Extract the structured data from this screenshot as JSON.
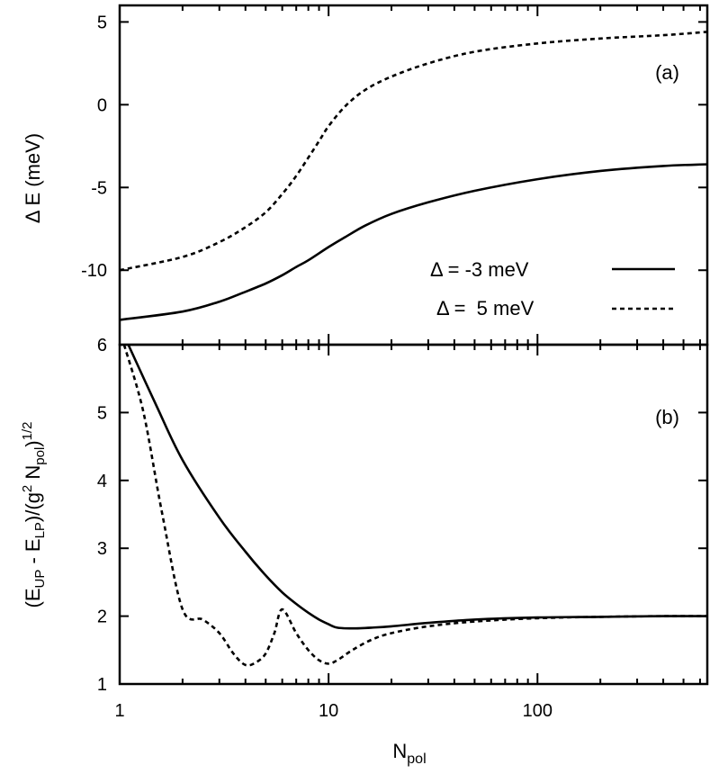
{
  "chart_data": {
    "type": "line",
    "xscale": "log",
    "xlim": [
      1,
      650
    ],
    "x_ticks": [
      1,
      10,
      100
    ],
    "x_tick_labels": [
      "1",
      "10",
      "100"
    ],
    "xlabel_main": "N",
    "xlabel_sub": "pol",
    "legend": [
      {
        "prefix": "Δ = ",
        "value": "-3 meV",
        "style": "solid"
      },
      {
        "prefix": "Δ = ",
        "value": " 5 meV",
        "style": "dashed"
      }
    ],
    "panels": [
      {
        "label": "(a)",
        "ylabel": "Δ E (meV)",
        "ylim": [
          -14.5,
          6
        ],
        "y_ticks": [
          5,
          0,
          -5,
          -10
        ],
        "y_tick_labels": [
          "5",
          "0",
          "-5",
          "-10"
        ],
        "series": [
          {
            "name": "Δ = -3 meV",
            "style": "solid",
            "x": [
              1,
              2,
              3,
              4,
              5,
              6,
              7,
              8,
              10,
              12,
              15,
              20,
              30,
              50,
              100,
              200,
              400,
              650
            ],
            "y": [
              -13,
              -12.5,
              -11.9,
              -11.3,
              -10.8,
              -10.3,
              -9.8,
              -9.4,
              -8.6,
              -8.0,
              -7.3,
              -6.6,
              -5.9,
              -5.2,
              -4.5,
              -4.0,
              -3.7,
              -3.6
            ]
          },
          {
            "name": "Δ = 5 meV",
            "style": "dashed",
            "x": [
              1,
              2,
              3,
              4,
              5,
              6,
              7,
              8,
              9,
              10,
              12,
              15,
              20,
              30,
              50,
              100,
              200,
              400,
              650
            ],
            "y": [
              -10,
              -9.2,
              -8.3,
              -7.4,
              -6.5,
              -5.4,
              -4.3,
              -3.2,
              -2.2,
              -1.3,
              -0.1,
              0.9,
              1.7,
              2.5,
              3.2,
              3.7,
              4.0,
              4.2,
              4.4
            ]
          }
        ]
      },
      {
        "label": "(b)",
        "ylabel_parts": [
          "(E",
          "UP",
          " - E",
          "LP",
          ")/(g",
          "2",
          " N",
          "pol",
          ")",
          "1/2"
        ],
        "ylim": [
          1,
          6
        ],
        "y_ticks": [
          6,
          5,
          4,
          3,
          2,
          1
        ],
        "y_tick_labels": [
          "6",
          "5",
          "4",
          "3",
          "2",
          "1"
        ],
        "series": [
          {
            "name": "Δ = -3 meV",
            "style": "solid",
            "x": [
              1.1,
              1.5,
              2,
              3,
              4,
              5,
              6,
              7,
              8,
              9,
              10,
              11,
              13,
              16,
              20,
              30,
              50,
              100,
              200,
              400,
              650
            ],
            "y": [
              6.0,
              5.1,
              4.3,
              3.45,
              2.95,
              2.6,
              2.35,
              2.18,
              2.05,
              1.95,
              1.88,
              1.83,
              1.82,
              1.83,
              1.85,
              1.9,
              1.95,
              1.98,
              1.99,
              2.0,
              2.0
            ]
          },
          {
            "name": "Δ = 5 meV",
            "style": "dashed",
            "x": [
              1.05,
              1.3,
              1.6,
              2,
              2.5,
              3,
              3.5,
              4,
              4.5,
              5,
              5.5,
              6,
              7,
              8,
              9,
              10,
              11,
              13,
              16,
              20,
              30,
              50,
              100,
              200,
              400,
              650
            ],
            "y": [
              6.0,
              5.0,
              3.5,
              2.1,
              1.95,
              1.75,
              1.45,
              1.28,
              1.32,
              1.45,
              1.75,
              2.1,
              1.75,
              1.5,
              1.35,
              1.3,
              1.35,
              1.5,
              1.65,
              1.75,
              1.85,
              1.92,
              1.97,
              1.99,
              2.0,
              2.0
            ]
          }
        ]
      }
    ]
  }
}
